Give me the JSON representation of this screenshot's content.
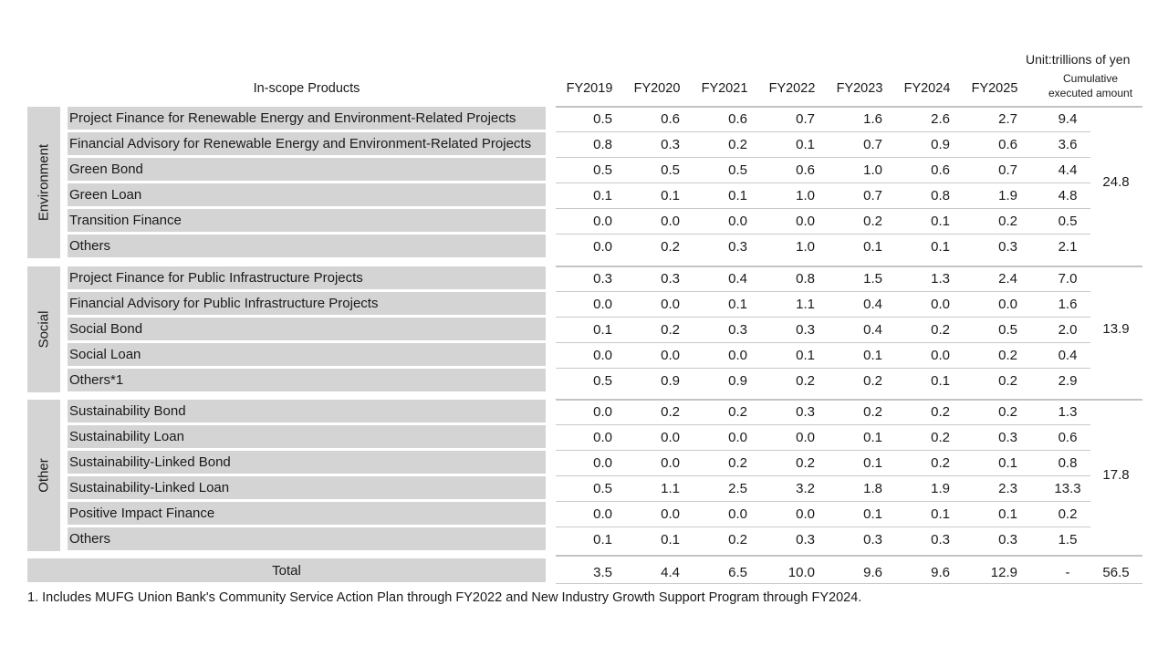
{
  "unit": "Unit:trillions of yen",
  "header": {
    "products": "In-scope Products",
    "years": [
      "FY2019",
      "FY2020",
      "FY2021",
      "FY2022",
      "FY2023",
      "FY2024",
      "FY2025"
    ],
    "cumulative_line1": "Cumulative",
    "cumulative_line2": "executed amount"
  },
  "groups": [
    {
      "label": "Environment",
      "total": "24.8",
      "rows": [
        {
          "product": "Project Finance for Renewable Energy and Environment-Related Projects",
          "values": [
            "0.5",
            "0.6",
            "0.6",
            "0.7",
            "1.6",
            "2.6",
            "2.7"
          ],
          "cumulative": "9.4"
        },
        {
          "product": "Financial Advisory for Renewable Energy and Environment-Related Projects",
          "values": [
            "0.8",
            "0.3",
            "0.2",
            "0.1",
            "0.7",
            "0.9",
            "0.6"
          ],
          "cumulative": "3.6"
        },
        {
          "product": "Green Bond",
          "values": [
            "0.5",
            "0.5",
            "0.5",
            "0.6",
            "1.0",
            "0.6",
            "0.7"
          ],
          "cumulative": "4.4"
        },
        {
          "product": "Green Loan",
          "values": [
            "0.1",
            "0.1",
            "0.1",
            "1.0",
            "0.7",
            "0.8",
            "1.9"
          ],
          "cumulative": "4.8"
        },
        {
          "product": "Transition Finance",
          "values": [
            "0.0",
            "0.0",
            "0.0",
            "0.0",
            "0.2",
            "0.1",
            "0.2"
          ],
          "cumulative": "0.5"
        },
        {
          "product": "Others",
          "values": [
            "0.0",
            "0.2",
            "0.3",
            "1.0",
            "0.1",
            "0.1",
            "0.3"
          ],
          "cumulative": "2.1"
        }
      ]
    },
    {
      "label": "Social",
      "total": "13.9",
      "rows": [
        {
          "product": "Project Finance for Public Infrastructure Projects",
          "values": [
            "0.3",
            "0.3",
            "0.4",
            "0.8",
            "1.5",
            "1.3",
            "2.4"
          ],
          "cumulative": "7.0"
        },
        {
          "product": "Financial Advisory for Public Infrastructure Projects",
          "values": [
            "0.0",
            "0.0",
            "0.1",
            "1.1",
            "0.4",
            "0.0",
            "0.0"
          ],
          "cumulative": "1.6"
        },
        {
          "product": "Social Bond",
          "values": [
            "0.1",
            "0.2",
            "0.3",
            "0.3",
            "0.4",
            "0.2",
            "0.5"
          ],
          "cumulative": "2.0"
        },
        {
          "product": "Social Loan",
          "values": [
            "0.0",
            "0.0",
            "0.0",
            "0.1",
            "0.1",
            "0.0",
            "0.2"
          ],
          "cumulative": "0.4"
        },
        {
          "product": "Others*1",
          "values": [
            "0.5",
            "0.9",
            "0.9",
            "0.2",
            "0.2",
            "0.1",
            "0.2"
          ],
          "cumulative": "2.9"
        }
      ]
    },
    {
      "label": "Other",
      "total": "17.8",
      "rows": [
        {
          "product": "Sustainability Bond",
          "values": [
            "0.0",
            "0.2",
            "0.2",
            "0.3",
            "0.2",
            "0.2",
            "0.2"
          ],
          "cumulative": "1.3"
        },
        {
          "product": "Sustainability Loan",
          "values": [
            "0.0",
            "0.0",
            "0.0",
            "0.0",
            "0.1",
            "0.2",
            "0.3"
          ],
          "cumulative": "0.6"
        },
        {
          "product": "Sustainability-Linked Bond",
          "values": [
            "0.0",
            "0.0",
            "0.2",
            "0.2",
            "0.1",
            "0.2",
            "0.1"
          ],
          "cumulative": "0.8"
        },
        {
          "product": "Sustainability-Linked Loan",
          "values": [
            "0.5",
            "1.1",
            "2.5",
            "3.2",
            "1.8",
            "1.9",
            "2.3"
          ],
          "cumulative": "13.3"
        },
        {
          "product": "Positive Impact Finance",
          "values": [
            "0.0",
            "0.0",
            "0.0",
            "0.0",
            "0.1",
            "0.1",
            "0.1"
          ],
          "cumulative": "0.2"
        },
        {
          "product": "Others",
          "values": [
            "0.1",
            "0.1",
            "0.2",
            "0.3",
            "0.3",
            "0.3",
            "0.3"
          ],
          "cumulative": "1.5"
        }
      ]
    }
  ],
  "total": {
    "label": "Total",
    "values": [
      "3.5",
      "4.4",
      "6.5",
      "10.0",
      "9.6",
      "9.6",
      "12.9"
    ],
    "cumulative": "-",
    "grand_total": "56.5"
  },
  "footnote": "1. Includes MUFG Union Bank's Community Service Action Plan through FY2022 and New Industry Growth Support Program through FY2024."
}
